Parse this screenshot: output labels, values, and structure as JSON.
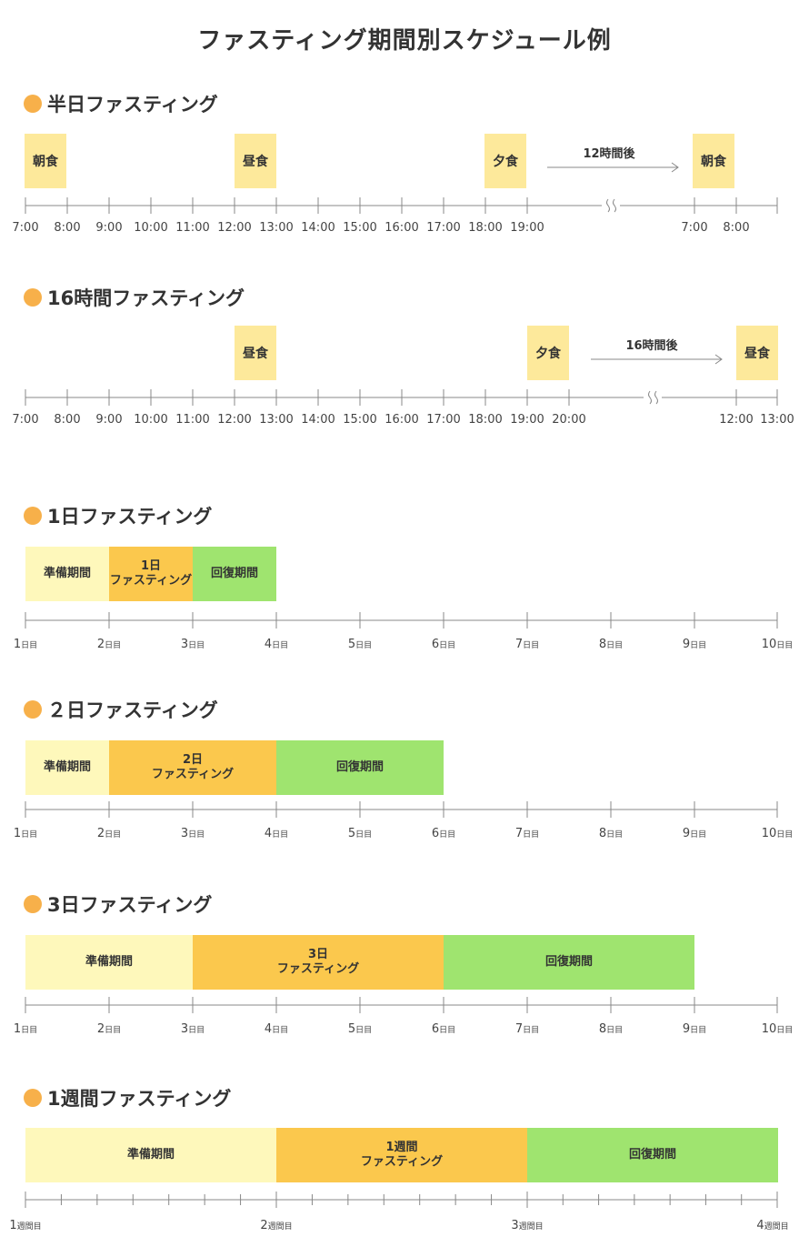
{
  "title": "ファスティング期間別スケジュール例",
  "colors": {
    "dot": "#f7b04a",
    "meal": "#fde99b",
    "prep": "#fef8bb",
    "fast": "#fbc84d",
    "recovery": "#9fe46f",
    "axis": "#888888"
  },
  "sections": {
    "half_day": {
      "title": "半日ファスティング",
      "meals": [
        "朝食",
        "昼食",
        "夕食",
        "朝食"
      ],
      "gap_label": "12時間後",
      "ticks": [
        "7:00",
        "8:00",
        "9:00",
        "10:00",
        "11:00",
        "12:00",
        "13:00",
        "14:00",
        "15:00",
        "16:00",
        "17:00",
        "18:00",
        "19:00",
        "7:00",
        "8:00"
      ]
    },
    "sixteen_hours": {
      "title": "16時間ファスティング",
      "meals": [
        "昼食",
        "夕食",
        "昼食"
      ],
      "gap_label": "16時間後",
      "ticks": [
        "7:00",
        "8:00",
        "9:00",
        "10:00",
        "11:00",
        "12:00",
        "13:00",
        "14:00",
        "15:00",
        "16:00",
        "17:00",
        "18:00",
        "19:00",
        "20:00",
        "12:00",
        "13:00"
      ]
    },
    "one_day": {
      "title": "1日ファスティング",
      "phases": [
        {
          "label": "準備期間",
          "start_day": 1,
          "end_day": 2
        },
        {
          "label_line1": "1日",
          "label_line2": "ファスティング",
          "start_day": 2,
          "end_day": 3
        },
        {
          "label": "回復期間",
          "start_day": 3,
          "end_day": 4
        }
      ]
    },
    "two_day": {
      "title": "２日ファスティング",
      "phases": [
        {
          "label": "準備期間",
          "start_day": 1,
          "end_day": 2
        },
        {
          "label_line1": "2日",
          "label_line2": "ファスティング",
          "start_day": 2,
          "end_day": 4
        },
        {
          "label": "回復期間",
          "start_day": 4,
          "end_day": 6
        }
      ]
    },
    "three_day": {
      "title": "3日ファスティング",
      "phases": [
        {
          "label": "準備期間",
          "start_day": 1,
          "end_day": 3
        },
        {
          "label_line1": "3日",
          "label_line2": "ファスティング",
          "start_day": 3,
          "end_day": 6
        },
        {
          "label": "回復期間",
          "start_day": 6,
          "end_day": 9
        }
      ]
    },
    "one_week": {
      "title": "1週間ファスティング",
      "phases": [
        {
          "label": "準備期間",
          "start_week": 1,
          "end_week": 2
        },
        {
          "label_line1": "1週間",
          "label_line2": "ファスティング",
          "start_week": 2,
          "end_week": 3
        },
        {
          "label": "回復期間",
          "start_week": 3,
          "end_week": 4
        }
      ],
      "week_labels": [
        {
          "num": "1",
          "suffix": "週間目"
        },
        {
          "num": "2",
          "suffix": "週間目"
        },
        {
          "num": "3",
          "suffix": "週間目"
        },
        {
          "num": "4",
          "suffix": "週間目"
        }
      ]
    }
  },
  "day_labels": [
    {
      "num": "1",
      "suffix": "日目"
    },
    {
      "num": "2",
      "suffix": "日目"
    },
    {
      "num": "3",
      "suffix": "日目"
    },
    {
      "num": "4",
      "suffix": "日目"
    },
    {
      "num": "5",
      "suffix": "日目"
    },
    {
      "num": "6",
      "suffix": "日目"
    },
    {
      "num": "7",
      "suffix": "日目"
    },
    {
      "num": "8",
      "suffix": "日目"
    },
    {
      "num": "9",
      "suffix": "日目"
    },
    {
      "num": "10",
      "suffix": "日目"
    }
  ]
}
